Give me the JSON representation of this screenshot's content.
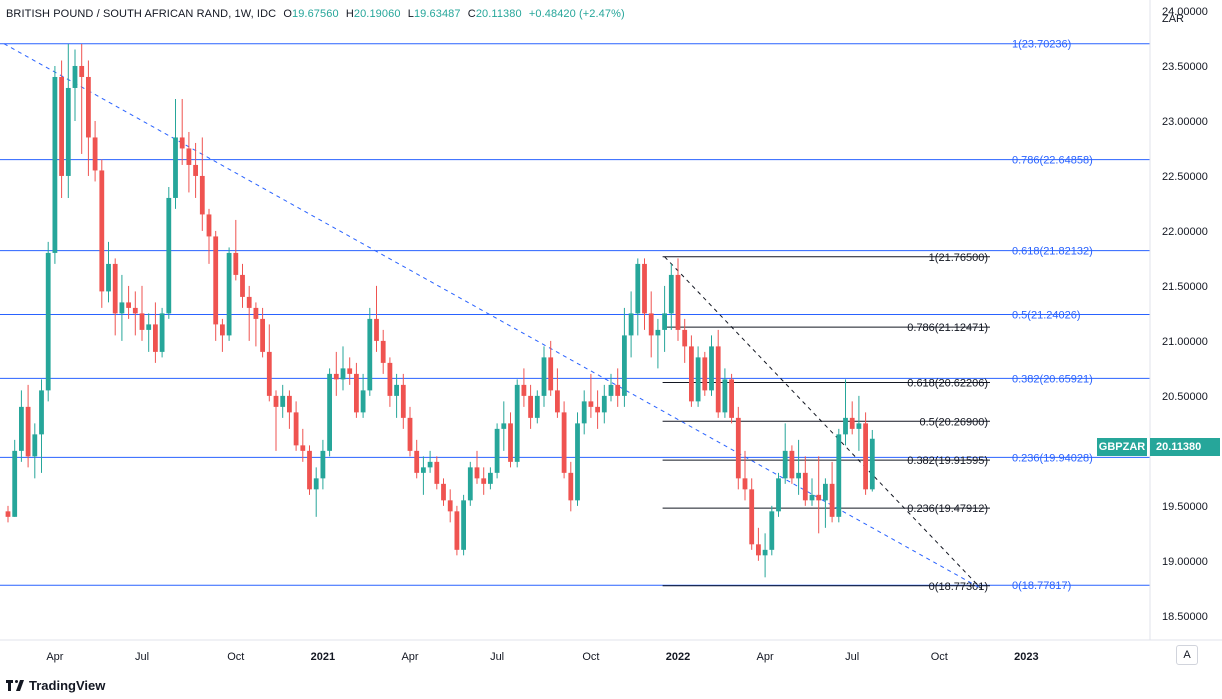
{
  "header": {
    "title": "BRITISH POUND / SOUTH AFRICAN RAND, 1W, IDC",
    "open_label": "O",
    "open": "19.67560",
    "high_label": "H",
    "high": "20.19060",
    "low_label": "L",
    "low": "19.63487",
    "close_label": "C",
    "close": "20.11380",
    "change": "+0.48420 (+2.47%)"
  },
  "axis": {
    "currency": "ZAR"
  },
  "badges": {
    "symbol": "GBPZAR",
    "last_price": "20.11380"
  },
  "footer": {
    "brand": "TradingView",
    "auto_button": "A"
  },
  "colors": {
    "up": "#26a69a",
    "down": "#ef5350",
    "fib_blue": "#2962ff",
    "fib_black": "#131722"
  },
  "chart_data": {
    "type": "candlestick",
    "title": "BRITISH POUND / SOUTH AFRICAN RAND, 1W, IDC",
    "interval": "1W",
    "ylim": [
      18.28,
      24.1
    ],
    "y_ticks": [
      {
        "v": 18.5,
        "label": "18.50000"
      },
      {
        "v": 19.0,
        "label": "19.00000"
      },
      {
        "v": 19.5,
        "label": "19.50000"
      },
      {
        "v": 20.0,
        "label": "20.00000"
      },
      {
        "v": 20.5,
        "label": "20.50000"
      },
      {
        "v": 21.0,
        "label": "21.00000"
      },
      {
        "v": 21.5,
        "label": "21.50000"
      },
      {
        "v": 22.0,
        "label": "22.00000"
      },
      {
        "v": 22.5,
        "label": "22.50000"
      },
      {
        "v": 23.0,
        "label": "23.00000"
      },
      {
        "v": 23.5,
        "label": "23.50000"
      },
      {
        "v": 24.0,
        "label": "24.00000"
      }
    ],
    "x_ticks": [
      {
        "i": 7,
        "label": "Apr",
        "bold": false
      },
      {
        "i": 20,
        "label": "Jul",
        "bold": false
      },
      {
        "i": 34,
        "label": "Oct",
        "bold": false
      },
      {
        "i": 47,
        "label": "2021",
        "bold": true
      },
      {
        "i": 60,
        "label": "Apr",
        "bold": false
      },
      {
        "i": 73,
        "label": "Jul",
        "bold": false
      },
      {
        "i": 87,
        "label": "Oct",
        "bold": false
      },
      {
        "i": 100,
        "label": "2022",
        "bold": true
      },
      {
        "i": 113,
        "label": "Apr",
        "bold": false
      },
      {
        "i": 126,
        "label": "Jul",
        "bold": false
      },
      {
        "i": 139,
        "label": "Oct",
        "bold": false
      },
      {
        "i": 152,
        "label": "2023",
        "bold": true
      }
    ],
    "candles": [
      [
        19.45,
        19.5,
        19.35,
        19.4
      ],
      [
        19.4,
        20.1,
        19.4,
        20.0
      ],
      [
        20.0,
        20.55,
        19.9,
        20.4
      ],
      [
        20.4,
        20.6,
        19.85,
        19.95
      ],
      [
        19.95,
        20.25,
        19.75,
        20.15
      ],
      [
        20.15,
        20.65,
        19.8,
        20.55
      ],
      [
        20.55,
        21.9,
        20.45,
        21.8
      ],
      [
        21.8,
        23.5,
        21.7,
        23.4
      ],
      [
        23.4,
        23.55,
        22.3,
        22.5
      ],
      [
        22.5,
        23.7,
        22.3,
        23.3
      ],
      [
        23.3,
        23.65,
        23.0,
        23.5
      ],
      [
        23.5,
        23.7,
        22.7,
        23.4
      ],
      [
        23.4,
        23.55,
        22.5,
        22.85
      ],
      [
        22.85,
        23.0,
        22.45,
        22.55
      ],
      [
        22.55,
        22.65,
        21.3,
        21.45
      ],
      [
        21.45,
        21.9,
        21.35,
        21.7
      ],
      [
        21.7,
        21.75,
        21.05,
        21.25
      ],
      [
        21.25,
        21.6,
        21.0,
        21.35
      ],
      [
        21.35,
        21.5,
        21.2,
        21.3
      ],
      [
        21.3,
        21.45,
        21.05,
        21.25
      ],
      [
        21.25,
        21.5,
        21.0,
        21.1
      ],
      [
        21.1,
        21.25,
        20.9,
        21.15
      ],
      [
        21.15,
        21.35,
        20.8,
        20.9
      ],
      [
        20.9,
        21.3,
        20.85,
        21.25
      ],
      [
        21.25,
        22.4,
        21.2,
        22.3
      ],
      [
        22.3,
        23.2,
        22.2,
        22.85
      ],
      [
        22.85,
        23.2,
        22.6,
        22.75
      ],
      [
        22.75,
        22.9,
        22.35,
        22.6
      ],
      [
        22.6,
        22.8,
        22.3,
        22.5
      ],
      [
        22.5,
        22.85,
        22.0,
        22.15
      ],
      [
        22.15,
        22.2,
        21.7,
        21.95
      ],
      [
        21.95,
        22.0,
        21.0,
        21.15
      ],
      [
        21.15,
        21.2,
        20.9,
        21.05
      ],
      [
        21.05,
        21.85,
        21.0,
        21.8
      ],
      [
        21.8,
        22.1,
        21.55,
        21.6
      ],
      [
        21.6,
        21.7,
        21.3,
        21.4
      ],
      [
        21.4,
        21.5,
        21.0,
        21.3
      ],
      [
        21.3,
        21.35,
        20.95,
        21.2
      ],
      [
        21.2,
        21.3,
        20.85,
        20.9
      ],
      [
        20.9,
        21.15,
        20.45,
        20.5
      ],
      [
        20.5,
        20.55,
        20.0,
        20.4
      ],
      [
        20.4,
        20.6,
        20.3,
        20.5
      ],
      [
        20.5,
        20.55,
        20.2,
        20.35
      ],
      [
        20.35,
        20.45,
        20.0,
        20.05
      ],
      [
        20.05,
        20.2,
        19.9,
        20.0
      ],
      [
        20.0,
        20.05,
        19.6,
        19.65
      ],
      [
        19.65,
        19.85,
        19.4,
        19.75
      ],
      [
        19.75,
        20.1,
        19.65,
        20.0
      ],
      [
        20.0,
        20.75,
        19.95,
        20.7
      ],
      [
        20.7,
        20.9,
        20.5,
        20.65
      ],
      [
        20.65,
        20.95,
        20.55,
        20.75
      ],
      [
        20.75,
        20.85,
        20.6,
        20.7
      ],
      [
        20.7,
        20.8,
        20.3,
        20.35
      ],
      [
        20.35,
        20.7,
        20.3,
        20.55
      ],
      [
        20.55,
        21.3,
        20.5,
        21.2
      ],
      [
        21.2,
        21.5,
        20.9,
        21.0
      ],
      [
        21.0,
        21.1,
        20.7,
        20.8
      ],
      [
        20.8,
        20.85,
        20.4,
        20.5
      ],
      [
        20.5,
        20.7,
        20.3,
        20.6
      ],
      [
        20.6,
        20.7,
        20.2,
        20.3
      ],
      [
        20.3,
        20.4,
        19.95,
        20.0
      ],
      [
        20.0,
        20.1,
        19.75,
        19.8
      ],
      [
        19.8,
        19.95,
        19.6,
        19.85
      ],
      [
        19.85,
        20.0,
        19.8,
        19.9
      ],
      [
        19.9,
        19.95,
        19.65,
        19.7
      ],
      [
        19.7,
        19.75,
        19.5,
        19.55
      ],
      [
        19.55,
        19.65,
        19.35,
        19.45
      ],
      [
        19.45,
        19.5,
        19.05,
        19.1
      ],
      [
        19.1,
        19.6,
        19.05,
        19.55
      ],
      [
        19.55,
        19.9,
        19.5,
        19.85
      ],
      [
        19.85,
        20.0,
        19.7,
        19.75
      ],
      [
        19.75,
        19.85,
        19.6,
        19.7
      ],
      [
        19.7,
        19.85,
        19.65,
        19.8
      ],
      [
        19.8,
        20.25,
        19.75,
        20.2
      ],
      [
        20.2,
        20.45,
        20.0,
        20.25
      ],
      [
        20.25,
        20.35,
        19.85,
        19.9
      ],
      [
        19.9,
        20.65,
        19.85,
        20.6
      ],
      [
        20.6,
        20.75,
        20.4,
        20.5
      ],
      [
        20.5,
        20.6,
        20.2,
        20.3
      ],
      [
        20.3,
        20.55,
        20.25,
        20.5
      ],
      [
        20.5,
        20.95,
        20.4,
        20.85
      ],
      [
        20.85,
        21.0,
        20.5,
        20.55
      ],
      [
        20.55,
        20.75,
        20.3,
        20.35
      ],
      [
        20.35,
        20.45,
        19.75,
        19.8
      ],
      [
        19.8,
        19.9,
        19.45,
        19.55
      ],
      [
        19.55,
        20.35,
        19.5,
        20.25
      ],
      [
        20.25,
        20.55,
        20.15,
        20.45
      ],
      [
        20.45,
        20.7,
        20.3,
        20.4
      ],
      [
        20.4,
        20.55,
        20.2,
        20.35
      ],
      [
        20.35,
        20.6,
        20.25,
        20.5
      ],
      [
        20.5,
        20.7,
        20.45,
        20.6
      ],
      [
        20.6,
        20.75,
        20.4,
        20.5
      ],
      [
        20.5,
        21.3,
        20.4,
        21.05
      ],
      [
        21.05,
        21.45,
        20.85,
        21.25
      ],
      [
        21.25,
        21.75,
        21.05,
        21.7
      ],
      [
        21.7,
        21.75,
        21.1,
        21.25
      ],
      [
        21.25,
        21.45,
        20.85,
        21.05
      ],
      [
        21.05,
        21.2,
        20.75,
        21.1
      ],
      [
        21.1,
        21.5,
        20.9,
        21.25
      ],
      [
        21.25,
        21.7,
        21.1,
        21.6
      ],
      [
        21.6,
        21.75,
        21.0,
        21.1
      ],
      [
        21.1,
        21.2,
        20.8,
        20.95
      ],
      [
        20.95,
        21.05,
        20.4,
        20.45
      ],
      [
        20.45,
        20.95,
        20.4,
        20.85
      ],
      [
        20.85,
        20.9,
        20.5,
        20.55
      ],
      [
        20.55,
        21.05,
        20.5,
        20.95
      ],
      [
        20.95,
        21.1,
        20.3,
        20.35
      ],
      [
        20.35,
        20.75,
        20.3,
        20.65
      ],
      [
        20.65,
        20.7,
        20.25,
        20.3
      ],
      [
        20.3,
        20.4,
        19.65,
        19.75
      ],
      [
        19.75,
        20.0,
        19.55,
        19.65
      ],
      [
        19.65,
        19.75,
        19.1,
        19.15
      ],
      [
        19.15,
        19.3,
        19.0,
        19.05
      ],
      [
        19.05,
        19.25,
        18.85,
        19.1
      ],
      [
        19.1,
        19.5,
        19.05,
        19.45
      ],
      [
        19.45,
        19.8,
        19.4,
        19.75
      ],
      [
        19.75,
        20.25,
        19.7,
        20.0
      ],
      [
        20.0,
        20.05,
        19.7,
        19.75
      ],
      [
        19.75,
        20.1,
        19.6,
        19.8
      ],
      [
        19.8,
        19.95,
        19.5,
        19.55
      ],
      [
        19.55,
        19.75,
        19.5,
        19.6
      ],
      [
        19.6,
        19.95,
        19.25,
        19.55
      ],
      [
        19.55,
        19.75,
        19.3,
        19.7
      ],
      [
        19.7,
        19.9,
        19.35,
        19.4
      ],
      [
        19.4,
        20.2,
        19.35,
        20.15
      ],
      [
        20.15,
        20.65,
        20.05,
        20.3
      ],
      [
        20.3,
        20.45,
        20.15,
        20.2
      ],
      [
        20.2,
        20.5,
        20.0,
        20.25
      ],
      [
        20.25,
        20.35,
        19.6,
        19.65
      ],
      [
        19.65,
        20.19,
        19.63,
        20.11
      ]
    ],
    "fib_retracement_blue": {
      "levels": [
        {
          "ratio": "1",
          "value": 23.70236,
          "label": "1(23.70236)"
        },
        {
          "ratio": "0.786",
          "value": 22.64858,
          "label": "0.786(22.64858)"
        },
        {
          "ratio": "0.618",
          "value": 21.82132,
          "label": "0.618(21.82132)"
        },
        {
          "ratio": "0.5",
          "value": 21.24026,
          "label": "0.5(21.24026)"
        },
        {
          "ratio": "0.382",
          "value": 20.65921,
          "label": "0.382(20.65921)"
        },
        {
          "ratio": "0.236",
          "value": 19.94028,
          "label": "0.236(19.94028)"
        },
        {
          "ratio": "0",
          "value": 18.77817,
          "label": "0(18.77817)"
        }
      ]
    },
    "fib_retracement_black": {
      "levels": [
        {
          "ratio": "1",
          "value": 21.765,
          "label": "1(21.76500)"
        },
        {
          "ratio": "0.786",
          "value": 21.12471,
          "label": "0.786(21.12471)"
        },
        {
          "ratio": "0.618",
          "value": 20.62206,
          "label": "0.618(20.62206)"
        },
        {
          "ratio": "0.5",
          "value": 20.269,
          "label": "0.5(20.26900)"
        },
        {
          "ratio": "0.382",
          "value": 19.91595,
          "label": "0.382(19.91595)"
        },
        {
          "ratio": "0.236",
          "value": 19.47912,
          "label": "0.236(19.47912)"
        },
        {
          "ratio": "0",
          "value": 18.77301,
          "label": "0(18.77301)"
        }
      ]
    },
    "trendlines": [
      {
        "name": "blue-dashed-trendline",
        "from": {
          "i": 0,
          "v": 23.70236
        },
        "to": {
          "i": 144,
          "v": 18.75
        }
      },
      {
        "name": "black-dashed-trendline",
        "from": {
          "i": 98,
          "v": 21.765
        },
        "to": {
          "i": 144,
          "v": 18.75
        }
      }
    ]
  }
}
